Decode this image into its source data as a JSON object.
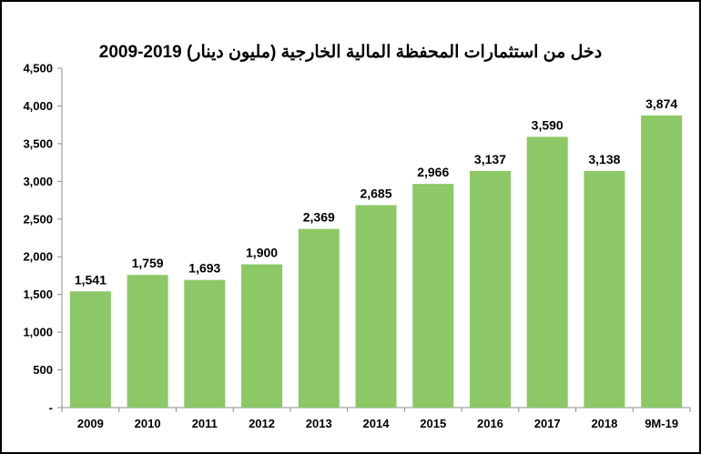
{
  "chart_data": {
    "type": "bar",
    "title": "دخل من استثمارات المحفظة المالية الخارجية (مليون دينار) 2019-2009",
    "categories": [
      "2009",
      "2010",
      "2011",
      "2012",
      "2013",
      "2014",
      "2015",
      "2016",
      "2017",
      "2018",
      "9M-19"
    ],
    "values": [
      1541,
      1759,
      1693,
      1900,
      2369,
      2685,
      2966,
      3137,
      3590,
      3138,
      3874
    ],
    "value_labels": [
      "1,541",
      "1,759",
      "1,693",
      "1,900",
      "2,369",
      "2,685",
      "2,966",
      "3,137",
      "3,590",
      "3,138",
      "3,874"
    ],
    "ylim": [
      0,
      4500
    ],
    "yticks": [
      0,
      500,
      1000,
      1500,
      2000,
      2500,
      3000,
      3500,
      4000,
      4500
    ],
    "ytick_labels": [
      "-",
      "500",
      "1,000",
      "1,500",
      "2,000",
      "2,500",
      "3,000",
      "3,500",
      "4,000",
      "4,500"
    ],
    "bar_color": "#8cc866",
    "grid": false,
    "legend": "none"
  }
}
